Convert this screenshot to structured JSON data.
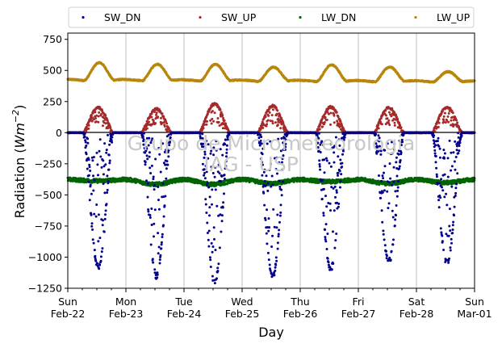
{
  "chart_data": {
    "type": "scatter",
    "xlabel": "Day",
    "ylabel_main": "Radiation (",
    "ylabel_unit": "Wm",
    "ylabel_exp": "−2",
    "ylabel_close": ")",
    "ylim": [
      -1250,
      800
    ],
    "xlim": [
      "2015-02-22",
      "2015-03-01"
    ],
    "yticks": [
      -1250,
      -1000,
      -750,
      -500,
      -250,
      0,
      250,
      500,
      750
    ],
    "ytick_labels": [
      "−1250",
      "−1000",
      "−750",
      "−500",
      "−250",
      "0",
      "250",
      "500",
      "750"
    ],
    "xticks": [
      {
        "day": "Sun",
        "date": "Feb-22"
      },
      {
        "day": "Mon",
        "date": "Feb-23"
      },
      {
        "day": "Tue",
        "date": "Feb-24"
      },
      {
        "day": "Wed",
        "date": "Feb-25"
      },
      {
        "day": "Thu",
        "date": "Feb-26"
      },
      {
        "day": "Fri",
        "date": "Feb-27"
      },
      {
        "day": "Sat",
        "date": "Feb-28"
      },
      {
        "day": "Sun",
        "date": "Mar-01"
      }
    ],
    "grid": "vertical",
    "legend_position": "top",
    "watermark_line1": "Grupo de Micrometeorologia",
    "watermark_line2": "IAG - USP",
    "series": [
      {
        "name": "SW_DN",
        "color": "#00008b",
        "daily_peak": [
          -1080,
          -1150,
          -1200,
          -1150,
          -1090,
          -1030,
          -1040
        ],
        "baseline": 0
      },
      {
        "name": "SW_UP",
        "color": "#a52a2a",
        "daily_peak": [
          200,
          190,
          230,
          215,
          205,
          200,
          205
        ],
        "baseline": 0
      },
      {
        "name": "LW_DN",
        "color": "#006400",
        "daily_min": [
          -380,
          -420,
          -420,
          -410,
          -390,
          -410,
          -400
        ],
        "baseline": -365
      },
      {
        "name": "LW_UP",
        "color": "#b8860b",
        "daily_peak": [
          570,
          560,
          560,
          540,
          560,
          545,
          510
        ],
        "baseline": 420
      }
    ]
  }
}
